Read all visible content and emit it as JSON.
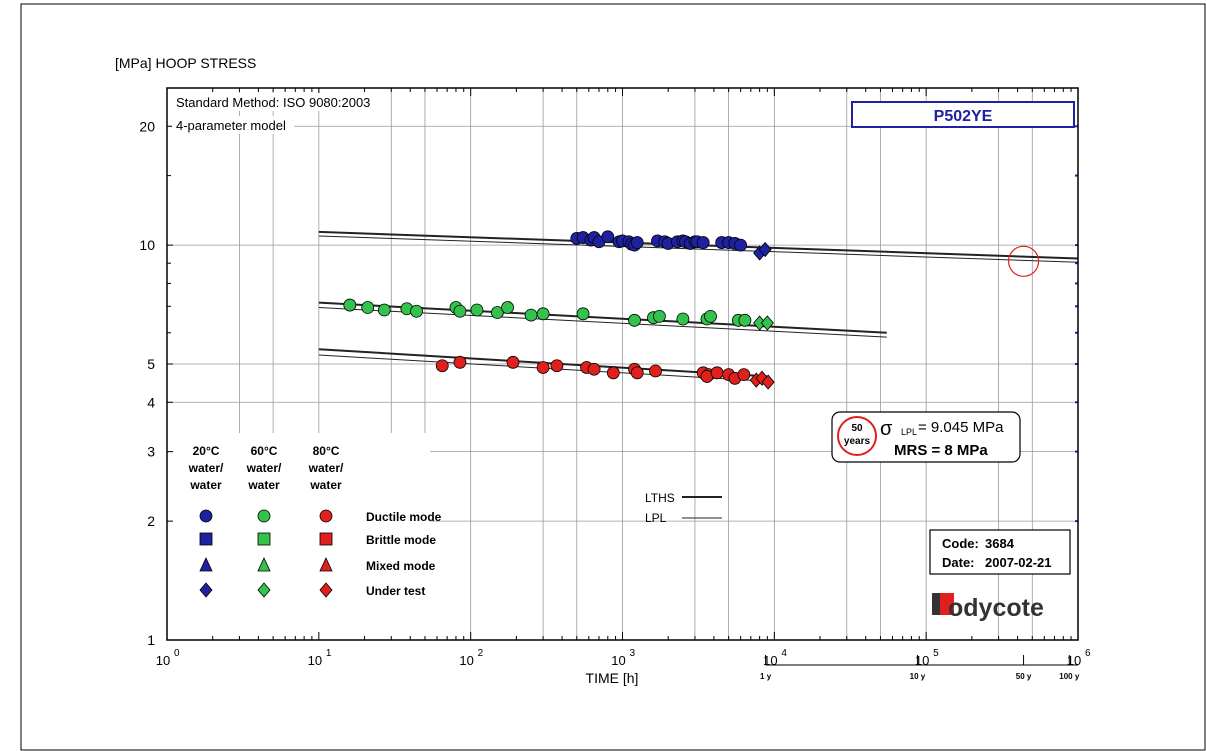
{
  "chart_data": {
    "type": "scatter",
    "title": "[MPa] HOOP STRESS",
    "xlabel": "TIME [h]",
    "ylabel": "",
    "x_scale": "log",
    "y_scale": "log",
    "xlim": [
      1,
      1000000
    ],
    "ylim": [
      1,
      25
    ],
    "x_ticks": [
      {
        "value": 1,
        "base": "10",
        "exp": "0"
      },
      {
        "value": 10,
        "base": "10",
        "exp": "1"
      },
      {
        "value": 100,
        "base": "10",
        "exp": "2"
      },
      {
        "value": 1000,
        "base": "10",
        "exp": "3"
      },
      {
        "value": 10000,
        "base": "10",
        "exp": "4"
      },
      {
        "value": 100000,
        "base": "10",
        "exp": "5"
      },
      {
        "value": 1000000,
        "base": "10",
        "exp": "6"
      }
    ],
    "y_ticks": [
      {
        "value": 1,
        "label": "1"
      },
      {
        "value": 2,
        "label": "2"
      },
      {
        "value": 3,
        "label": "3"
      },
      {
        "value": 4,
        "label": "4"
      },
      {
        "value": 5,
        "label": "5"
      },
      {
        "value": 10,
        "label": "10"
      },
      {
        "value": 20,
        "label": "20"
      }
    ],
    "years_axis": [
      {
        "hours": 8760,
        "label": "1 y"
      },
      {
        "hours": 87600,
        "label": "10 y"
      },
      {
        "hours": 438000,
        "label": "50 y"
      },
      {
        "hours": 876000,
        "label": "100 y"
      }
    ],
    "method_text": "Standard Method: ISO 9080:2003",
    "model_text": "4-parameter model",
    "material": "P502YE",
    "lines": [
      {
        "name": "LTHS",
        "kind": "LTHS",
        "points": [
          [
            10,
            10.8
          ],
          [
            1000000,
            9.25
          ]
        ]
      },
      {
        "name": "LPL",
        "kind": "LPL",
        "points": [
          [
            10,
            10.55
          ],
          [
            1000000,
            9.05
          ]
        ]
      },
      {
        "name": "LTHS",
        "kind": "LTHS",
        "points": [
          [
            10,
            7.15
          ],
          [
            55000,
            6.0
          ]
        ]
      },
      {
        "name": "LPL",
        "kind": "LPL",
        "points": [
          [
            10,
            6.95
          ],
          [
            55000,
            5.85
          ]
        ]
      },
      {
        "name": "LTHS",
        "kind": "LTHS",
        "points": [
          [
            10,
            5.45
          ],
          [
            9000,
            4.65
          ]
        ]
      },
      {
        "name": "LPL",
        "kind": "LPL",
        "points": [
          [
            10,
            5.27
          ],
          [
            9000,
            4.52
          ]
        ]
      }
    ],
    "series": [
      {
        "name": "20°C water/water Ductile mode",
        "color": "#1e22a0",
        "marker": "circle",
        "points": [
          [
            500,
            10.4
          ],
          [
            550,
            10.45
          ],
          [
            620,
            10.3
          ],
          [
            650,
            10.45
          ],
          [
            700,
            10.2
          ],
          [
            800,
            10.5
          ],
          [
            950,
            10.2
          ],
          [
            1000,
            10.25
          ],
          [
            1100,
            10.2
          ],
          [
            1150,
            10.05
          ],
          [
            1200,
            10.0
          ],
          [
            1250,
            10.15
          ],
          [
            1700,
            10.25
          ],
          [
            1900,
            10.2
          ],
          [
            2000,
            10.1
          ],
          [
            2300,
            10.2
          ],
          [
            2500,
            10.25
          ],
          [
            2600,
            10.2
          ],
          [
            2800,
            10.1
          ],
          [
            3000,
            10.2
          ],
          [
            3100,
            10.2
          ],
          [
            3400,
            10.15
          ],
          [
            4500,
            10.15
          ],
          [
            5000,
            10.15
          ],
          [
            5500,
            10.1
          ],
          [
            6000,
            10.0
          ]
        ]
      },
      {
        "name": "20°C water/water Under test",
        "color": "#1e22a0",
        "marker": "diamond",
        "points": [
          [
            8000,
            9.55
          ],
          [
            8700,
            9.75
          ]
        ]
      },
      {
        "name": "60°C water/water Ductile mode",
        "color": "#33c24b",
        "marker": "circle",
        "points": [
          [
            16,
            7.05
          ],
          [
            21,
            6.95
          ],
          [
            27,
            6.85
          ],
          [
            38,
            6.9
          ],
          [
            44,
            6.8
          ],
          [
            80,
            6.95
          ],
          [
            85,
            6.8
          ],
          [
            110,
            6.85
          ],
          [
            150,
            6.75
          ],
          [
            175,
            6.95
          ],
          [
            250,
            6.65
          ],
          [
            300,
            6.7
          ],
          [
            550,
            6.7
          ],
          [
            1200,
            6.45
          ],
          [
            1600,
            6.55
          ],
          [
            1750,
            6.6
          ],
          [
            2500,
            6.5
          ],
          [
            3600,
            6.5
          ],
          [
            3800,
            6.6
          ],
          [
            5800,
            6.45
          ],
          [
            6400,
            6.45
          ]
        ]
      },
      {
        "name": "60°C water/water Under test",
        "color": "#33c24b",
        "marker": "diamond",
        "points": [
          [
            8000,
            6.35
          ],
          [
            9000,
            6.35
          ]
        ]
      },
      {
        "name": "80°C water/water Ductile mode",
        "color": "#e0201d",
        "marker": "circle",
        "points": [
          [
            65,
            4.95
          ],
          [
            85,
            5.05
          ],
          [
            190,
            5.05
          ],
          [
            300,
            4.9
          ],
          [
            370,
            4.95
          ],
          [
            580,
            4.9
          ],
          [
            650,
            4.85
          ],
          [
            870,
            4.75
          ],
          [
            1200,
            4.85
          ],
          [
            1250,
            4.75
          ],
          [
            1650,
            4.8
          ],
          [
            3400,
            4.75
          ],
          [
            3700,
            4.7
          ],
          [
            3600,
            4.65
          ],
          [
            4200,
            4.75
          ],
          [
            5000,
            4.7
          ],
          [
            5500,
            4.6
          ],
          [
            6300,
            4.7
          ]
        ]
      },
      {
        "name": "80°C water/water Under test",
        "color": "#e0201d",
        "marker": "diamond",
        "points": [
          [
            7600,
            4.55
          ],
          [
            8300,
            4.6
          ],
          [
            9100,
            4.5
          ]
        ]
      }
    ],
    "highlight": {
      "hours": 438000,
      "stress": 9.1
    }
  },
  "legend": {
    "col_headers": [
      {
        "temp": "20°C",
        "medium": "water/",
        "medium2": "water",
        "color": "#1e22a0"
      },
      {
        "temp": "60°C",
        "medium": "water/",
        "medium2": "water",
        "color": "#33c24b"
      },
      {
        "temp": "80°C",
        "medium": "water/",
        "medium2": "water",
        "color": "#e0201d"
      }
    ],
    "modes": [
      "Ductile mode",
      "Brittle mode",
      "Mixed mode",
      "Under test"
    ],
    "line_legend": [
      "LTHS",
      "LPL"
    ]
  },
  "mrs_box": {
    "badge_top": "50",
    "badge_bottom": "years",
    "sigma": "σ",
    "sigma_sub": "LPL",
    "sigma_value": "= 9.045 MPa",
    "mrs_text": "MRS =  8 MPa"
  },
  "info_box": {
    "code_label": "Code:",
    "code_value": "3684",
    "date_label": "Date:",
    "date_value": "2007-02-21"
  },
  "brand": {
    "name": "odycote",
    "initial": "B",
    "color": "#e0201d"
  }
}
